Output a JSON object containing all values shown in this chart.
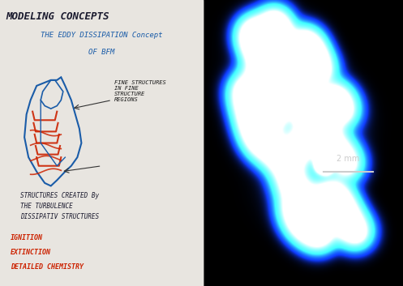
{
  "title": "MODELING CONCEPTS",
  "subtitle1": "THE EDDY DISSIPATION Concept",
  "subtitle2": "OF BFM",
  "annotation1": "FINE STRUCTURES\nIN FINE\nSTRUCTURE\nREGIONS",
  "text_structures": "STRUCTURES CREATED By\nTHE TURBULENCE\nDISSIPATIV STRUCTURES",
  "text_bottom1": "IGNITION",
  "text_bottom2": "EXTINCTION",
  "text_bottom3": "DETAILED CHEMISTRY",
  "scale_label": "2 mm",
  "left_bg": "#f0eeea",
  "right_bg": "#000005",
  "title_color": "#1a1a2e",
  "subtitle_color": "#1a5ca8",
  "annotation_color": "#1a1a1a",
  "structures_color": "#1a1a2e",
  "bottom_color": "#cc2200",
  "sketch_blue": "#1a5ca8",
  "sketch_red": "#cc2200",
  "scale_color": "#cccccc"
}
